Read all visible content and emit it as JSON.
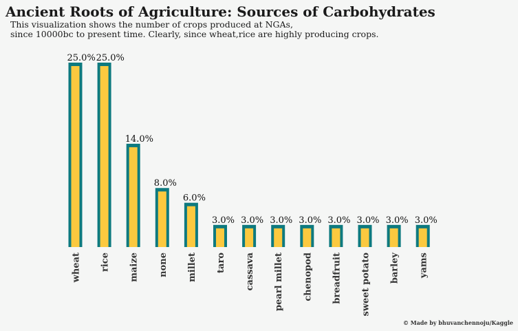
{
  "header": {
    "title": "Ancient Roots of Agriculture: Sources of Carbohydrates",
    "subtitle": "This visualization shows the number of crops produced at NGAs,\nsince 10000bc to present time. Clearly, since wheat,rice are highly producing crops."
  },
  "footer": {
    "credit": "© Made by bhuvanchennoju/Kaggle"
  },
  "colors": {
    "bar_fill": "#fbc93f",
    "bar_edge": "#0e7a7f",
    "background": "#f5f6f5"
  },
  "chart_data": {
    "type": "bar",
    "title": "Ancient Roots of Agriculture: Sources of Carbohydrates",
    "xlabel": "",
    "ylabel": "",
    "categories": [
      "wheat",
      "rice",
      "maize",
      "none",
      "millet",
      "taro",
      "cassava",
      "pearl millet",
      "chenopod",
      "breadfruit",
      "sweet potato",
      "barley",
      "yams"
    ],
    "values": [
      25.0,
      25.0,
      14.0,
      8.0,
      6.0,
      3.0,
      3.0,
      3.0,
      3.0,
      3.0,
      3.0,
      3.0,
      3.0
    ],
    "value_labels": [
      "25.0%",
      "25.0%",
      "14.0%",
      "8.0%",
      "6.0%",
      "3.0%",
      "3.0%",
      "3.0%",
      "3.0%",
      "3.0%",
      "3.0%",
      "3.0%",
      "3.0%"
    ],
    "ylim": [
      0,
      25
    ],
    "grid": false,
    "legend": "none"
  }
}
